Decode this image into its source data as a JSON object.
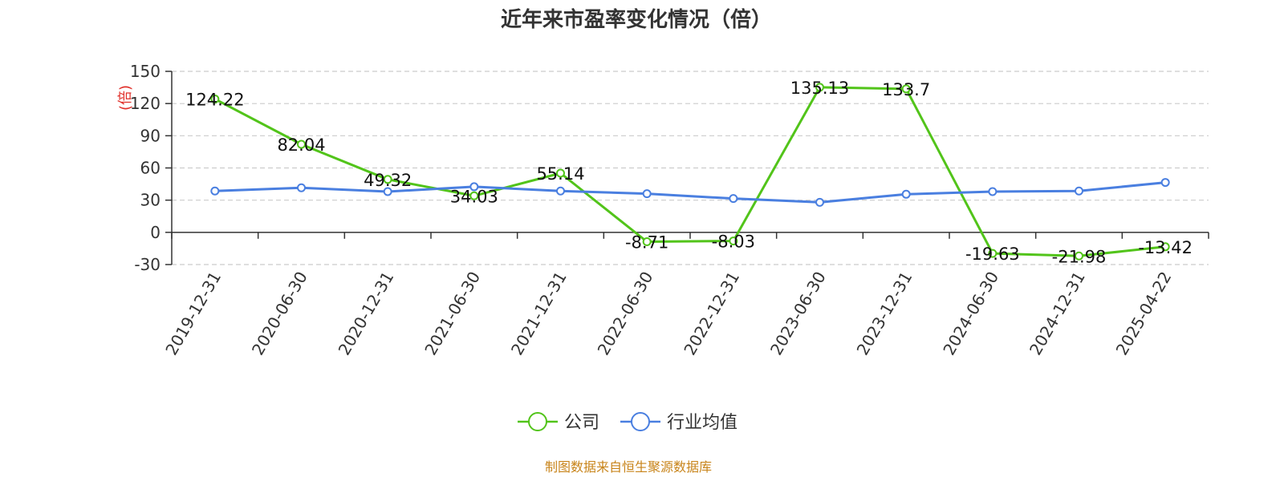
{
  "chart_data": {
    "type": "line",
    "title": "近年来市盈率变化情况（倍）",
    "ylabel": "(倍)",
    "xlabel": "",
    "categories": [
      "2019-12-31",
      "2020-06-30",
      "2020-12-31",
      "2021-06-30",
      "2021-12-31",
      "2022-06-30",
      "2022-12-31",
      "2023-06-30",
      "2023-12-31",
      "2024-06-30",
      "2024-12-31",
      "2025-04-22"
    ],
    "ylim": [
      -30,
      150
    ],
    "yticks": [
      -30,
      0,
      30,
      60,
      90,
      120,
      150
    ],
    "grid": true,
    "legend_position": "bottom",
    "series": [
      {
        "name": "公司",
        "color": "#52c41a",
        "values": [
          124.22,
          82.04,
          49.32,
          34.03,
          55.14,
          -8.71,
          -8.03,
          135.13,
          133.7,
          -19.63,
          -21.98,
          -13.42
        ],
        "labels": [
          "124.22",
          "82.04",
          "49.32",
          "34.03",
          "55.14",
          "-8.71",
          "-8.03",
          "135.13",
          "133.7",
          "-19.63",
          "-21.98",
          "-13.42"
        ]
      },
      {
        "name": "行业均值",
        "color": "#4a7fe0",
        "values": [
          38.5,
          41.5,
          38,
          42.5,
          38.5,
          36,
          31.5,
          28,
          35.5,
          38,
          38.5,
          46.5
        ]
      }
    ]
  },
  "footer": {
    "source": "制图数据来自恒生聚源数据库",
    "color": "#c8841a"
  },
  "unit_color": "#e0302a"
}
